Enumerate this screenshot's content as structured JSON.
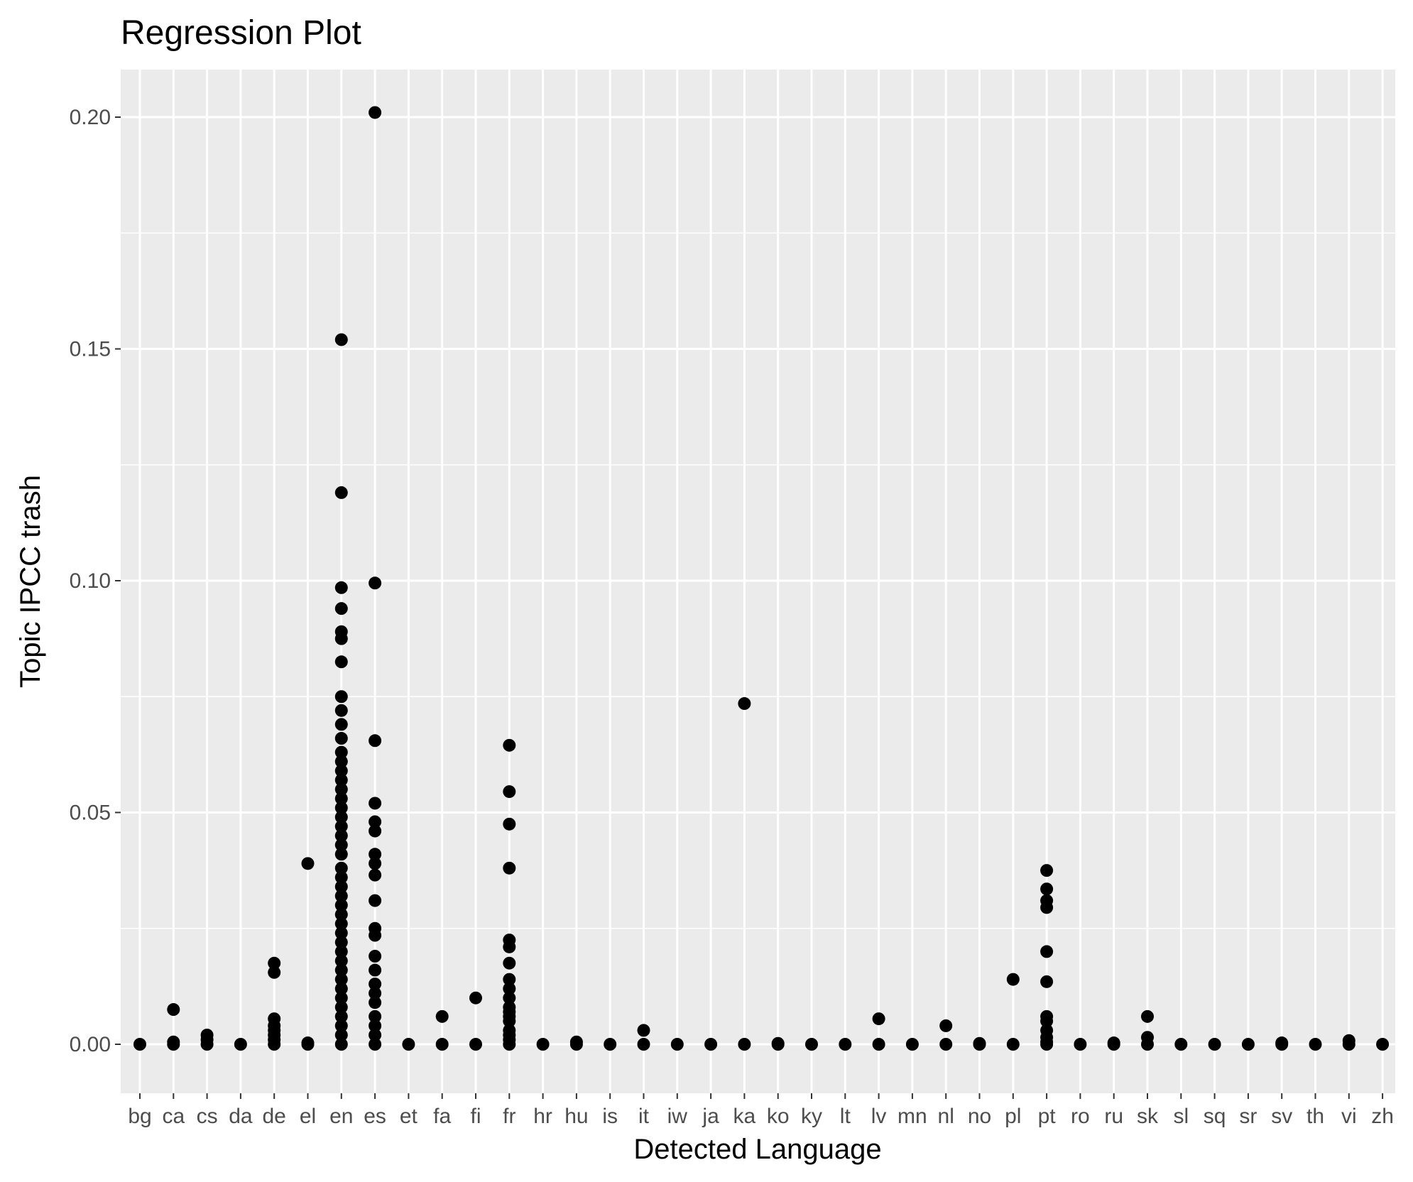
{
  "chart_data": {
    "type": "scatter",
    "title": "Regression Plot",
    "xlabel": "Detected Language",
    "ylabel": "Topic IPCC trash",
    "categories": [
      "bg",
      "ca",
      "cs",
      "da",
      "de",
      "el",
      "en",
      "es",
      "et",
      "fa",
      "fi",
      "fr",
      "hr",
      "hu",
      "is",
      "it",
      "iw",
      "ja",
      "ka",
      "ko",
      "ky",
      "lt",
      "lv",
      "mn",
      "nl",
      "no",
      "pl",
      "pt",
      "ro",
      "ru",
      "sk",
      "sl",
      "sq",
      "sr",
      "sv",
      "th",
      "vi",
      "zh"
    ],
    "ylim": [
      -0.01,
      0.205
    ],
    "yticks": [
      0.0,
      0.05,
      0.1,
      0.15,
      0.2
    ],
    "ytick_labels": [
      "0.00",
      "0.05",
      "0.10",
      "0.15",
      "0.20"
    ],
    "grid": true,
    "point_color": "#000000",
    "panel_color": "#ebebeb",
    "grid_color": "#ffffff",
    "series": [
      {
        "points": [
          [
            "bg",
            0.0
          ],
          [
            "ca",
            0.0
          ],
          [
            "ca",
            0.0005
          ],
          [
            "ca",
            0.0075
          ],
          [
            "cs",
            0.0
          ],
          [
            "cs",
            0.001
          ],
          [
            "cs",
            0.002
          ],
          [
            "da",
            0.0
          ],
          [
            "de",
            0.0
          ],
          [
            "de",
            0.001
          ],
          [
            "de",
            0.002
          ],
          [
            "de",
            0.003
          ],
          [
            "de",
            0.004
          ],
          [
            "de",
            0.0055
          ],
          [
            "de",
            0.0155
          ],
          [
            "de",
            0.0175
          ],
          [
            "el",
            0.0
          ],
          [
            "el",
            0.0003
          ],
          [
            "el",
            0.039
          ],
          [
            "en",
            0.0
          ],
          [
            "en",
            0.002
          ],
          [
            "en",
            0.004
          ],
          [
            "en",
            0.006
          ],
          [
            "en",
            0.008
          ],
          [
            "en",
            0.01
          ],
          [
            "en",
            0.012
          ],
          [
            "en",
            0.014
          ],
          [
            "en",
            0.016
          ],
          [
            "en",
            0.018
          ],
          [
            "en",
            0.02
          ],
          [
            "en",
            0.022
          ],
          [
            "en",
            0.024
          ],
          [
            "en",
            0.026
          ],
          [
            "en",
            0.028
          ],
          [
            "en",
            0.03
          ],
          [
            "en",
            0.032
          ],
          [
            "en",
            0.034
          ],
          [
            "en",
            0.036
          ],
          [
            "en",
            0.038
          ],
          [
            "en",
            0.041
          ],
          [
            "en",
            0.043
          ],
          [
            "en",
            0.045
          ],
          [
            "en",
            0.047
          ],
          [
            "en",
            0.049
          ],
          [
            "en",
            0.051
          ],
          [
            "en",
            0.053
          ],
          [
            "en",
            0.055
          ],
          [
            "en",
            0.057
          ],
          [
            "en",
            0.059
          ],
          [
            "en",
            0.061
          ],
          [
            "en",
            0.063
          ],
          [
            "en",
            0.066
          ],
          [
            "en",
            0.069
          ],
          [
            "en",
            0.072
          ],
          [
            "en",
            0.075
          ],
          [
            "en",
            0.0825
          ],
          [
            "en",
            0.0875
          ],
          [
            "en",
            0.089
          ],
          [
            "en",
            0.094
          ],
          [
            "en",
            0.0985
          ],
          [
            "en",
            0.119
          ],
          [
            "en",
            0.152
          ],
          [
            "es",
            0.0
          ],
          [
            "es",
            0.002
          ],
          [
            "es",
            0.004
          ],
          [
            "es",
            0.006
          ],
          [
            "es",
            0.009
          ],
          [
            "es",
            0.011
          ],
          [
            "es",
            0.013
          ],
          [
            "es",
            0.016
          ],
          [
            "es",
            0.019
          ],
          [
            "es",
            0.0235
          ],
          [
            "es",
            0.025
          ],
          [
            "es",
            0.031
          ],
          [
            "es",
            0.0365
          ],
          [
            "es",
            0.039
          ],
          [
            "es",
            0.041
          ],
          [
            "es",
            0.046
          ],
          [
            "es",
            0.048
          ],
          [
            "es",
            0.052
          ],
          [
            "es",
            0.0655
          ],
          [
            "es",
            0.0995
          ],
          [
            "es",
            0.201
          ],
          [
            "et",
            0.0
          ],
          [
            "fa",
            0.0
          ],
          [
            "fa",
            0.006
          ],
          [
            "fi",
            0.0
          ],
          [
            "fi",
            0.01
          ],
          [
            "fr",
            0.0
          ],
          [
            "fr",
            0.001
          ],
          [
            "fr",
            0.002
          ],
          [
            "fr",
            0.003
          ],
          [
            "fr",
            0.005
          ],
          [
            "fr",
            0.006
          ],
          [
            "fr",
            0.007
          ],
          [
            "fr",
            0.008
          ],
          [
            "fr",
            0.01
          ],
          [
            "fr",
            0.012
          ],
          [
            "fr",
            0.014
          ],
          [
            "fr",
            0.0175
          ],
          [
            "fr",
            0.021
          ],
          [
            "fr",
            0.0225
          ],
          [
            "fr",
            0.038
          ],
          [
            "fr",
            0.0475
          ],
          [
            "fr",
            0.0545
          ],
          [
            "fr",
            0.0645
          ],
          [
            "hr",
            0.0
          ],
          [
            "hu",
            0.0
          ],
          [
            "hu",
            0.0005
          ],
          [
            "is",
            0.0
          ],
          [
            "it",
            0.0
          ],
          [
            "it",
            0.003
          ],
          [
            "iw",
            0.0
          ],
          [
            "ja",
            0.0
          ],
          [
            "ka",
            0.0
          ],
          [
            "ka",
            0.0735
          ],
          [
            "ko",
            0.0
          ],
          [
            "ko",
            0.0002
          ],
          [
            "ky",
            0.0
          ],
          [
            "lt",
            0.0
          ],
          [
            "lv",
            0.0
          ],
          [
            "lv",
            0.0055
          ],
          [
            "mn",
            0.0
          ],
          [
            "nl",
            0.0
          ],
          [
            "nl",
            0.004
          ],
          [
            "no",
            0.0
          ],
          [
            "no",
            0.0002
          ],
          [
            "pl",
            0.0
          ],
          [
            "pl",
            0.014
          ],
          [
            "pt",
            0.0
          ],
          [
            "pt",
            0.0005
          ],
          [
            "pt",
            0.0015
          ],
          [
            "pt",
            0.003
          ],
          [
            "pt",
            0.005
          ],
          [
            "pt",
            0.006
          ],
          [
            "pt",
            0.0135
          ],
          [
            "pt",
            0.02
          ],
          [
            "pt",
            0.0295
          ],
          [
            "pt",
            0.031
          ],
          [
            "pt",
            0.0335
          ],
          [
            "pt",
            0.0375
          ],
          [
            "ro",
            0.0
          ],
          [
            "ru",
            0.0
          ],
          [
            "ru",
            0.0003
          ],
          [
            "sk",
            0.0
          ],
          [
            "sk",
            0.0015
          ],
          [
            "sk",
            0.006
          ],
          [
            "sl",
            0.0
          ],
          [
            "sq",
            0.0
          ],
          [
            "sr",
            0.0
          ],
          [
            "sv",
            0.0
          ],
          [
            "sv",
            0.0003
          ],
          [
            "th",
            0.0
          ],
          [
            "vi",
            0.0
          ],
          [
            "vi",
            0.0008
          ],
          [
            "zh",
            0.0
          ]
        ]
      }
    ]
  }
}
